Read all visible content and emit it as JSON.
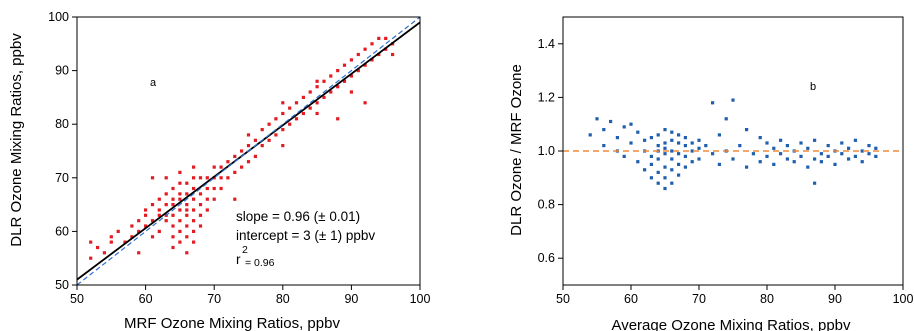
{
  "colors": {
    "scatter_a": "#e31b23",
    "scatter_b": "#1f5fae",
    "fit_line": "#000000",
    "one_to_one": "#2e6fd1",
    "reference_line": "#f08a3a",
    "axis": "#000000"
  },
  "chart_data": [
    {
      "type": "scatter",
      "panel_label": "a",
      "xlabel": "MRF Ozone Mixing Ratios, ppbv",
      "ylabel": "DLR Ozone Mixing Ratios, ppbv",
      "xlim": [
        50,
        100
      ],
      "ylim": [
        50,
        100
      ],
      "xticks": [
        50,
        60,
        70,
        80,
        90,
        100
      ],
      "yticks": [
        50,
        60,
        70,
        80,
        90,
        100
      ],
      "grid": false,
      "annotations": {
        "slope": "slope = 0.96 (± 0.01)",
        "intercept": "intercept = 3 (± 1) ppbv",
        "r2_prefix": "r",
        "r2_superscript": "2",
        "r2_value": "= 0.96"
      },
      "lines": [
        {
          "style": "solid",
          "color": "#000000",
          "slope": 0.96,
          "intercept": 3
        },
        {
          "style": "dashed",
          "color": "#2e6fd1",
          "slope": 1.0,
          "intercept": 0
        }
      ],
      "series": [
        {
          "marker": "square",
          "color": "#e31b23",
          "points": [
            [
              52,
              55
            ],
            [
              52,
              58
            ],
            [
              53,
              57
            ],
            [
              54,
              56
            ],
            [
              55,
              59
            ],
            [
              55,
              58
            ],
            [
              56,
              60
            ],
            [
              57,
              58
            ],
            [
              58,
              59
            ],
            [
              58,
              61
            ],
            [
              59,
              60
            ],
            [
              59,
              62
            ],
            [
              60,
              61
            ],
            [
              60,
              63
            ],
            [
              60,
              64
            ],
            [
              61,
              62
            ],
            [
              61,
              65
            ],
            [
              61,
              59
            ],
            [
              62,
              63
            ],
            [
              62,
              64
            ],
            [
              62,
              66
            ],
            [
              62,
              60
            ],
            [
              63,
              62
            ],
            [
              63,
              65
            ],
            [
              63,
              67
            ],
            [
              63,
              63
            ],
            [
              64,
              61
            ],
            [
              64,
              63
            ],
            [
              64,
              65
            ],
            [
              64,
              66
            ],
            [
              64,
              68
            ],
            [
              64,
              59
            ],
            [
              64,
              57
            ],
            [
              65,
              58
            ],
            [
              65,
              60
            ],
            [
              65,
              62
            ],
            [
              65,
              64
            ],
            [
              65,
              66
            ],
            [
              65,
              67
            ],
            [
              65,
              69
            ],
            [
              65,
              71
            ],
            [
              66,
              56
            ],
            [
              66,
              59
            ],
            [
              66,
              61
            ],
            [
              66,
              63
            ],
            [
              66,
              64
            ],
            [
              66,
              65
            ],
            [
              66,
              67
            ],
            [
              66,
              69
            ],
            [
              67,
              58
            ],
            [
              67,
              60
            ],
            [
              67,
              62
            ],
            [
              67,
              64
            ],
            [
              67,
              66
            ],
            [
              67,
              68
            ],
            [
              67,
              70
            ],
            [
              67,
              72
            ],
            [
              68,
              61
            ],
            [
              68,
              63
            ],
            [
              68,
              65
            ],
            [
              68,
              67
            ],
            [
              68,
              70
            ],
            [
              69,
              64
            ],
            [
              69,
              66
            ],
            [
              69,
              68
            ],
            [
              69,
              70
            ],
            [
              70,
              66
            ],
            [
              70,
              68
            ],
            [
              70,
              70
            ],
            [
              70,
              72
            ],
            [
              71,
              68
            ],
            [
              71,
              70
            ],
            [
              71,
              72
            ],
            [
              72,
              70
            ],
            [
              72,
              73
            ],
            [
              73,
              71
            ],
            [
              73,
              74
            ],
            [
              74,
              72
            ],
            [
              74,
              75
            ],
            [
              75,
              73
            ],
            [
              75,
              76
            ],
            [
              75,
              78
            ],
            [
              76,
              74
            ],
            [
              76,
              77
            ],
            [
              77,
              76
            ],
            [
              77,
              79
            ],
            [
              78,
              77
            ],
            [
              78,
              80
            ],
            [
              79,
              78
            ],
            [
              79,
              81
            ],
            [
              80,
              79
            ],
            [
              80,
              82
            ],
            [
              80,
              84
            ],
            [
              81,
              80
            ],
            [
              81,
              83
            ],
            [
              82,
              81
            ],
            [
              82,
              84
            ],
            [
              83,
              82
            ],
            [
              83,
              85
            ],
            [
              84,
              83
            ],
            [
              84,
              86
            ],
            [
              85,
              84
            ],
            [
              85,
              87
            ],
            [
              85,
              82
            ],
            [
              86,
              85
            ],
            [
              86,
              88
            ],
            [
              87,
              86
            ],
            [
              87,
              89
            ],
            [
              88,
              87
            ],
            [
              88,
              90
            ],
            [
              89,
              88
            ],
            [
              89,
              91
            ],
            [
              90,
              89
            ],
            [
              90,
              92
            ],
            [
              90,
              86
            ],
            [
              91,
              90
            ],
            [
              91,
              93
            ],
            [
              92,
              91
            ],
            [
              92,
              94
            ],
            [
              93,
              92
            ],
            [
              93,
              95
            ],
            [
              94,
              93
            ],
            [
              94,
              96
            ],
            [
              95,
              94
            ],
            [
              95,
              96
            ],
            [
              96,
              95
            ],
            [
              96,
              93
            ],
            [
              59,
              56
            ],
            [
              63,
              70
            ],
            [
              61,
              70
            ],
            [
              88,
              81
            ],
            [
              92,
              84
            ],
            [
              85,
              88
            ],
            [
              80,
              76
            ],
            [
              73,
              66
            ]
          ]
        }
      ]
    },
    {
      "type": "scatter",
      "panel_label": "b",
      "xlabel": "Average Ozone Mixing Ratios, ppbv",
      "ylabel": "DLR Ozone / MRF Ozone",
      "xlim": [
        50,
        100
      ],
      "ylim": [
        0.5,
        1.5
      ],
      "xticks": [
        50,
        60,
        70,
        80,
        90,
        100
      ],
      "yticks": [
        0.6,
        0.8,
        1.0,
        1.2,
        1.4
      ],
      "grid": false,
      "reference_line": {
        "y": 1.0,
        "style": "dashed",
        "color": "#f08a3a"
      },
      "series": [
        {
          "marker": "square",
          "color": "#1f5fae",
          "points": [
            [
              54,
              1.06
            ],
            [
              55,
              1.12
            ],
            [
              56,
              1.08
            ],
            [
              56,
              1.02
            ],
            [
              57,
              1.11
            ],
            [
              58,
              1.05
            ],
            [
              58,
              1.0
            ],
            [
              59,
              1.09
            ],
            [
              59,
              0.98
            ],
            [
              60,
              1.03
            ],
            [
              60,
              1.1
            ],
            [
              61,
              0.96
            ],
            [
              61,
              1.07
            ],
            [
              62,
              0.93
            ],
            [
              62,
              1.04
            ],
            [
              62,
              1.0
            ],
            [
              63,
              0.9
            ],
            [
              63,
              0.98
            ],
            [
              63,
              1.05
            ],
            [
              63,
              0.95
            ],
            [
              64,
              0.88
            ],
            [
              64,
              0.92
            ],
            [
              64,
              0.97
            ],
            [
              64,
              1.02
            ],
            [
              64,
              1.06
            ],
            [
              64,
              1.0
            ],
            [
              65,
              0.86
            ],
            [
              65,
              0.9
            ],
            [
              65,
              0.94
            ],
            [
              65,
              0.99
            ],
            [
              65,
              1.03
            ],
            [
              65,
              1.08
            ],
            [
              65,
              1.01
            ],
            [
              66,
              0.88
            ],
            [
              66,
              0.93
            ],
            [
              66,
              0.97
            ],
            [
              66,
              1.0
            ],
            [
              66,
              1.04
            ],
            [
              66,
              1.07
            ],
            [
              67,
              0.91
            ],
            [
              67,
              0.95
            ],
            [
              67,
              0.99
            ],
            [
              67,
              1.03
            ],
            [
              67,
              1.06
            ],
            [
              68,
              0.94
            ],
            [
              68,
              0.98
            ],
            [
              68,
              1.02
            ],
            [
              68,
              1.05
            ],
            [
              69,
              0.96
            ],
            [
              69,
              1.0
            ],
            [
              69,
              1.03
            ],
            [
              70,
              0.97
            ],
            [
              70,
              1.01
            ],
            [
              70,
              1.04
            ],
            [
              71,
              1.02
            ],
            [
              72,
              1.18
            ],
            [
              72,
              0.99
            ],
            [
              73,
              1.06
            ],
            [
              73,
              0.95
            ],
            [
              74,
              1.12
            ],
            [
              74,
              1.0
            ],
            [
              75,
              1.19
            ],
            [
              75,
              0.97
            ],
            [
              76,
              1.02
            ],
            [
              77,
              0.94
            ],
            [
              77,
              1.08
            ],
            [
              78,
              0.99
            ],
            [
              79,
              1.05
            ],
            [
              79,
              0.96
            ],
            [
              80,
              1.03
            ],
            [
              80,
              0.98
            ],
            [
              81,
              0.95
            ],
            [
              81,
              1.01
            ],
            [
              82,
              1.04
            ],
            [
              82,
              0.99
            ],
            [
              83,
              0.97
            ],
            [
              83,
              1.02
            ],
            [
              84,
              1.0
            ],
            [
              84,
              0.96
            ],
            [
              85,
              1.03
            ],
            [
              85,
              0.98
            ],
            [
              86,
              0.94
            ],
            [
              86,
              1.01
            ],
            [
              87,
              0.97
            ],
            [
              87,
              1.04
            ],
            [
              87,
              0.88
            ],
            [
              88,
              0.99
            ],
            [
              88,
              0.96
            ],
            [
              89,
              1.02
            ],
            [
              89,
              0.98
            ],
            [
              90,
              1.0
            ],
            [
              90,
              0.95
            ],
            [
              91,
              1.03
            ],
            [
              91,
              0.99
            ],
            [
              92,
              0.97
            ],
            [
              92,
              1.01
            ],
            [
              93,
              1.04
            ],
            [
              93,
              0.98
            ],
            [
              94,
              1.0
            ],
            [
              94,
              0.96
            ],
            [
              95,
              1.02
            ],
            [
              95,
              0.99
            ],
            [
              96,
              1.01
            ],
            [
              96,
              0.98
            ]
          ]
        }
      ]
    }
  ]
}
